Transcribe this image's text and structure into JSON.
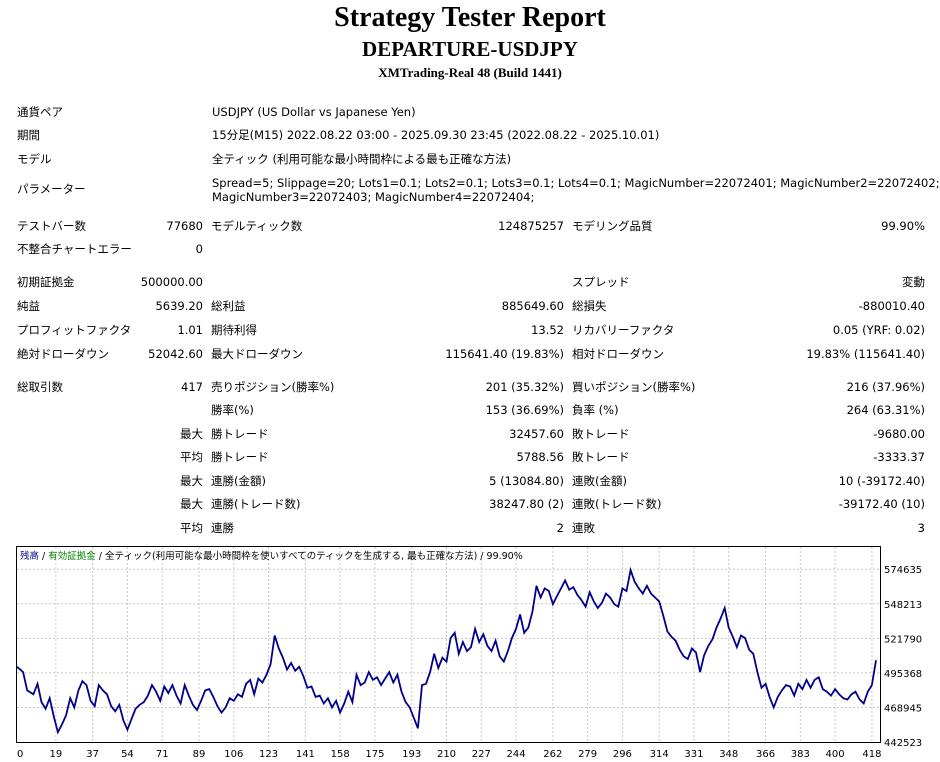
{
  "header": {
    "title": "Strategy Tester Report",
    "ea_name": "DEPARTURE-USDJPY",
    "server": "XMTrading-Real 48 (Build 1441)"
  },
  "settings": [
    {
      "label": "通貨ペア",
      "value": "USDJPY (US Dollar vs Japanese Yen)"
    },
    {
      "label": "期間",
      "value": "15分足(M15) 2022.08.22 03:00 - 2025.09.30 23:45 (2022.08.22 - 2025.10.01)"
    },
    {
      "label": "モデル",
      "value": "全ティック (利用可能な最小時間枠による最も正確な方法)"
    },
    {
      "label": "パラメーター",
      "value_line1": "Spread=5; Slippage=20; Lots1=0.1; Lots2=0.1; Lots3=0.1; Lots4=0.1; MagicNumber=22072401; MagicNumber2=22072402;",
      "value_line2": "MagicNumber3=22072403; MagicNumber4=22072404;"
    }
  ],
  "bars": {
    "test_bars_label": "テストバー数",
    "test_bars": "77680",
    "model_ticks_label": "モデルティック数",
    "model_ticks": "124875257",
    "quality_label": "モデリング品質",
    "quality": "99.90%",
    "errors_label": "不整合チャートエラー",
    "errors": "0"
  },
  "results": {
    "initial_deposit_label": "初期証拠金",
    "initial_deposit": "500000.00",
    "spread_label": "スプレッド",
    "spread": "変動",
    "net_profit_label": "純益",
    "net_profit": "5639.20",
    "gross_profit_label": "総利益",
    "gross_profit": "885649.60",
    "gross_loss_label": "総損失",
    "gross_loss": "-880010.40",
    "profit_factor_label": "プロフィットファクタ",
    "profit_factor": "1.01",
    "expected_payoff_label": "期待利得",
    "expected_payoff": "13.52",
    "recovery_factor_label": "リカバリーファクタ",
    "recovery_factor": "0.05 (YRF: 0.02)",
    "abs_dd_label": "絶対ドローダウン",
    "abs_dd": "52042.60",
    "max_dd_label": "最大ドローダウン",
    "max_dd": "115641.40 (19.83%)",
    "rel_dd_label": "相対ドローダウン",
    "rel_dd": "19.83% (115641.40)"
  },
  "trades": {
    "total_label": "総取引数",
    "total": "417",
    "short_label": "売りポジション(勝率%)",
    "short": "201 (35.32%)",
    "long_label": "買いポジション(勝率%)",
    "long": "216 (37.96%)",
    "win_rate_label": "勝率(%)",
    "win_rate": "153 (36.69%)",
    "loss_rate_label": "負率 (%)",
    "loss_rate": "264 (63.31%)",
    "max_label": "最大",
    "avg_label": "平均",
    "largest_win_label": "勝トレード",
    "largest_win": "32457.60",
    "largest_loss_label": "敗トレード",
    "largest_loss": "-9680.00",
    "avg_win_label": "勝トレード",
    "avg_win": "5788.56",
    "avg_loss_label": "敗トレード",
    "avg_loss": "-3333.37",
    "max_cons_wins_label": "連勝(金額)",
    "max_cons_wins": "5 (13084.80)",
    "max_cons_losses_label": "連敗(金額)",
    "max_cons_losses": "10 (-39172.40)",
    "max_cons_profit_label": "連勝(トレード数)",
    "max_cons_profit": "38247.80 (2)",
    "max_cons_loss_label": "連敗(トレード数)",
    "max_cons_loss": "-39172.40 (10)",
    "avg_cons_wins_label": "連勝",
    "avg_cons_wins": "2",
    "avg_cons_losses_label": "連敗",
    "avg_cons_losses": "3"
  },
  "chart_data": {
    "type": "line",
    "legend_balance": "残高",
    "legend_equity": "有効証拠金",
    "legend_rest": " / 全ティック(利用可能な最小時間枠を使いすべてのティックを生成する, 最も正確な方法) / 99.90%",
    "colors": {
      "balance": "#00008b",
      "equity": "#008000",
      "legend_balance": "#00008b",
      "legend_equity": "#008000"
    },
    "x_ticks": [
      0,
      19,
      37,
      54,
      71,
      89,
      106,
      123,
      141,
      158,
      175,
      193,
      210,
      227,
      244,
      262,
      279,
      296,
      314,
      331,
      348,
      366,
      383,
      400,
      418
    ],
    "y_ticks": [
      442523,
      468945,
      495368,
      521790,
      548213,
      574635
    ],
    "xlim": [
      0,
      420
    ],
    "ylim": [
      442523,
      584000
    ],
    "grid": true,
    "series": [
      {
        "values": [
          [
            0,
            500000
          ],
          [
            3,
            496000
          ],
          [
            5,
            482000
          ],
          [
            8,
            479000
          ],
          [
            10,
            487000
          ],
          [
            12,
            473000
          ],
          [
            14,
            468000
          ],
          [
            16,
            476000
          ],
          [
            18,
            462000
          ],
          [
            20,
            450000
          ],
          [
            22,
            456000
          ],
          [
            24,
            463000
          ],
          [
            26,
            476000
          ],
          [
            28,
            469000
          ],
          [
            30,
            482000
          ],
          [
            32,
            489000
          ],
          [
            34,
            486000
          ],
          [
            36,
            474000
          ],
          [
            38,
            470000
          ],
          [
            40,
            486000
          ],
          [
            42,
            482000
          ],
          [
            44,
            479000
          ],
          [
            46,
            470000
          ],
          [
            48,
            466000
          ],
          [
            50,
            471000
          ],
          [
            52,
            459000
          ],
          [
            54,
            452000
          ],
          [
            56,
            460000
          ],
          [
            58,
            468000
          ],
          [
            60,
            471000
          ],
          [
            62,
            473000
          ],
          [
            64,
            478000
          ],
          [
            66,
            486000
          ],
          [
            68,
            481000
          ],
          [
            70,
            474000
          ],
          [
            72,
            485000
          ],
          [
            74,
            480000
          ],
          [
            76,
            486000
          ],
          [
            78,
            478000
          ],
          [
            80,
            472000
          ],
          [
            82,
            486000
          ],
          [
            84,
            478000
          ],
          [
            86,
            471000
          ],
          [
            88,
            467000
          ],
          [
            90,
            474000
          ],
          [
            92,
            482000
          ],
          [
            94,
            483000
          ],
          [
            96,
            477000
          ],
          [
            98,
            470000
          ],
          [
            100,
            465000
          ],
          [
            102,
            469000
          ],
          [
            104,
            476000
          ],
          [
            106,
            474000
          ],
          [
            108,
            479000
          ],
          [
            110,
            477000
          ],
          [
            112,
            487000
          ],
          [
            114,
            490000
          ],
          [
            116,
            479000
          ],
          [
            118,
            491000
          ],
          [
            120,
            488000
          ],
          [
            122,
            494000
          ],
          [
            124,
            502000
          ],
          [
            126,
            524000
          ],
          [
            128,
            514000
          ],
          [
            130,
            507000
          ],
          [
            132,
            498000
          ],
          [
            134,
            503000
          ],
          [
            136,
            497000
          ],
          [
            138,
            500000
          ],
          [
            140,
            493000
          ],
          [
            142,
            484000
          ],
          [
            144,
            485000
          ],
          [
            146,
            477000
          ],
          [
            148,
            478000
          ],
          [
            150,
            472000
          ],
          [
            152,
            476000
          ],
          [
            154,
            469000
          ],
          [
            156,
            474000
          ],
          [
            158,
            465000
          ],
          [
            160,
            472000
          ],
          [
            162,
            481000
          ],
          [
            164,
            473000
          ],
          [
            166,
            494000
          ],
          [
            168,
            486000
          ],
          [
            170,
            488000
          ],
          [
            172,
            496000
          ],
          [
            174,
            490000
          ],
          [
            176,
            492000
          ],
          [
            178,
            486000
          ],
          [
            180,
            491000
          ],
          [
            182,
            496000
          ],
          [
            184,
            488000
          ],
          [
            186,
            494000
          ],
          [
            188,
            481000
          ],
          [
            190,
            473000
          ],
          [
            192,
            469000
          ],
          [
            194,
            461000
          ],
          [
            196,
            453000
          ],
          [
            198,
            486000
          ],
          [
            200,
            487000
          ],
          [
            202,
            496000
          ],
          [
            204,
            510000
          ],
          [
            206,
            499000
          ],
          [
            208,
            507000
          ],
          [
            210,
            504000
          ],
          [
            212,
            522000
          ],
          [
            214,
            526000
          ],
          [
            216,
            510000
          ],
          [
            218,
            519000
          ],
          [
            220,
            512000
          ],
          [
            222,
            515000
          ],
          [
            224,
            529000
          ],
          [
            226,
            519000
          ],
          [
            228,
            525000
          ],
          [
            230,
            516000
          ],
          [
            232,
            512000
          ],
          [
            234,
            520000
          ],
          [
            236,
            508000
          ],
          [
            238,
            504000
          ],
          [
            240,
            512000
          ],
          [
            242,
            522000
          ],
          [
            244,
            529000
          ],
          [
            246,
            540000
          ],
          [
            248,
            526000
          ],
          [
            250,
            530000
          ],
          [
            252,
            542000
          ],
          [
            254,
            562000
          ],
          [
            256,
            553000
          ],
          [
            258,
            560000
          ],
          [
            260,
            558000
          ],
          [
            262,
            548000
          ],
          [
            264,
            554000
          ],
          [
            266,
            560000
          ],
          [
            268,
            566000
          ],
          [
            270,
            559000
          ],
          [
            272,
            561000
          ],
          [
            274,
            555000
          ],
          [
            276,
            551000
          ],
          [
            278,
            546000
          ],
          [
            280,
            557000
          ],
          [
            282,
            550000
          ],
          [
            284,
            545000
          ],
          [
            286,
            549000
          ],
          [
            288,
            556000
          ],
          [
            290,
            553000
          ],
          [
            292,
            548000
          ],
          [
            294,
            546000
          ],
          [
            296,
            560000
          ],
          [
            298,
            558000
          ],
          [
            300,
            574000
          ],
          [
            302,
            565000
          ],
          [
            304,
            560000
          ],
          [
            306,
            556000
          ],
          [
            308,
            562000
          ],
          [
            310,
            556000
          ],
          [
            312,
            553000
          ],
          [
            314,
            550000
          ],
          [
            316,
            539000
          ],
          [
            318,
            527000
          ],
          [
            320,
            523000
          ],
          [
            322,
            520000
          ],
          [
            324,
            513000
          ],
          [
            326,
            508000
          ],
          [
            328,
            506000
          ],
          [
            330,
            514000
          ],
          [
            332,
            511000
          ],
          [
            334,
            496000
          ],
          [
            336,
            509000
          ],
          [
            338,
            516000
          ],
          [
            340,
            521000
          ],
          [
            342,
            530000
          ],
          [
            344,
            537000
          ],
          [
            346,
            545000
          ],
          [
            348,
            530000
          ],
          [
            350,
            523000
          ],
          [
            352,
            515000
          ],
          [
            354,
            524000
          ],
          [
            356,
            522000
          ],
          [
            358,
            513000
          ],
          [
            360,
            510000
          ],
          [
            362,
            496000
          ],
          [
            364,
            484000
          ],
          [
            366,
            487000
          ],
          [
            368,
            477000
          ],
          [
            370,
            469000
          ],
          [
            372,
            477000
          ],
          [
            374,
            482000
          ],
          [
            376,
            486000
          ],
          [
            378,
            485000
          ],
          [
            380,
            478000
          ],
          [
            382,
            487000
          ],
          [
            384,
            483000
          ],
          [
            386,
            490000
          ],
          [
            388,
            484000
          ],
          [
            390,
            490000
          ],
          [
            392,
            492000
          ],
          [
            394,
            483000
          ],
          [
            396,
            481000
          ],
          [
            398,
            478000
          ],
          [
            400,
            483000
          ],
          [
            402,
            479000
          ],
          [
            404,
            476000
          ],
          [
            406,
            475000
          ],
          [
            408,
            479000
          ],
          [
            410,
            481000
          ],
          [
            412,
            475000
          ],
          [
            414,
            472000
          ],
          [
            416,
            481000
          ],
          [
            418,
            486000
          ],
          [
            420,
            505000
          ]
        ]
      }
    ]
  }
}
